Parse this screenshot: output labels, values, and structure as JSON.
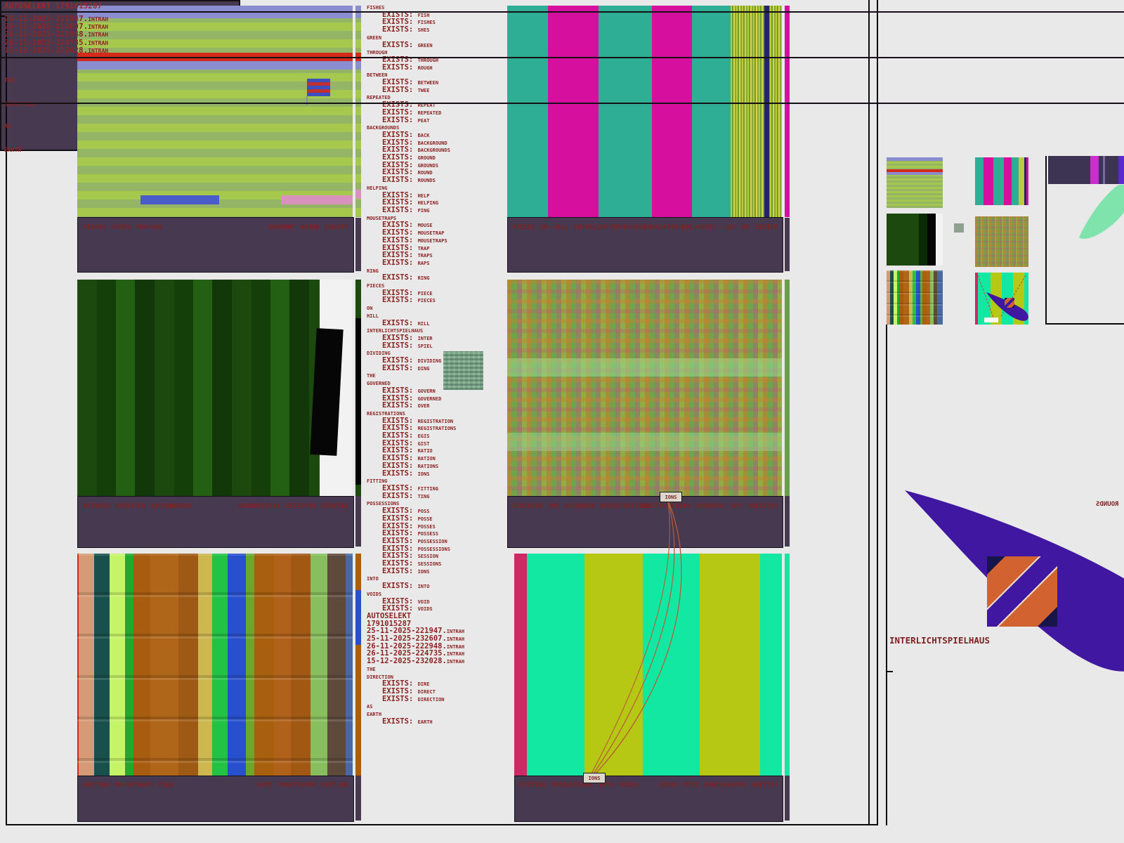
{
  "exists_label": "EXISTS:",
  "word_list": {
    "items": [
      {
        "w": "fishes",
        "e": [
          "fish",
          "fishes",
          "shes"
        ]
      },
      {
        "w": "green",
        "e": [
          "green"
        ]
      },
      {
        "w": "through",
        "e": [
          "through",
          "rough"
        ]
      },
      {
        "w": "between",
        "e": [
          "between",
          "twee"
        ]
      },
      {
        "w": "repeated",
        "e": [
          "repeat",
          "repeated",
          "peat"
        ]
      },
      {
        "w": "backgrounds",
        "e": [
          "back",
          "background",
          "backgrounds",
          "ground",
          "grounds",
          "round",
          "rounds"
        ]
      },
      {
        "w": "helping",
        "e": [
          "help",
          "helping",
          "ping"
        ]
      },
      {
        "w": "mousetraps",
        "e": [
          "mouse",
          "mousetrap",
          "mousetraps",
          "trap",
          "traps",
          "raps"
        ]
      },
      {
        "w": "ring",
        "e": [
          "ring"
        ]
      },
      {
        "w": "pieces",
        "e": [
          "piece",
          "pieces"
        ]
      },
      {
        "w": "on",
        "e": []
      },
      {
        "w": "hill",
        "e": [
          "hill"
        ]
      },
      {
        "w": "interlichtspielhaus",
        "e": [
          "inter",
          "spiel"
        ]
      },
      {
        "w": "dividing",
        "e": [
          "dividing",
          "ding"
        ]
      },
      {
        "w": "the",
        "e": []
      },
      {
        "w": "governed",
        "e": [
          "govern",
          "governed",
          "over"
        ]
      },
      {
        "w": "registrations",
        "e": [
          "registration",
          "registrations",
          "egis",
          "gist",
          "ratio",
          "ration",
          "rations",
          "ions"
        ]
      },
      {
        "w": "fitting",
        "e": [
          "fitting",
          "ting"
        ]
      },
      {
        "w": "possessions",
        "e": [
          "poss",
          "posse",
          "posses",
          "possess",
          "possession",
          "possessions",
          "session",
          "sessions",
          "ions"
        ]
      },
      {
        "w": "into",
        "e": [
          "into"
        ]
      },
      {
        "w": "voids",
        "e": [
          "void",
          "voids"
        ]
      },
      {
        "t": "AUTOSELEKT"
      },
      {
        "t": "1791015287"
      },
      {
        "t": "25-11-2025-221947.intrah"
      },
      {
        "t": "25-11-2025-232607.intrah"
      },
      {
        "t": "26-11-2025-222948.intrah"
      },
      {
        "t": "26-11-2025-224735.intrah"
      },
      {
        "t": "15-12-2025-232028.intrah"
      },
      {
        "w": "the",
        "e": []
      },
      {
        "w": "direction",
        "e": [
          "dire",
          "direct",
          "direction"
        ]
      },
      {
        "w": "as",
        "e": []
      },
      {
        "w": "earth",
        "e": [
          "earth"
        ]
      }
    ]
  },
  "captions": [
    {
      "text": "fishes green through"
    },
    {
      "text": "between repeated backgrounds"
    },
    {
      "text": "helping mousetraps ring"
    },
    {
      "text": "pieces on hill interlichtspielhaus"
    },
    {
      "text": "dividing the governed registrations",
      "highlight": "ions"
    },
    {
      "text": "fitting possessions into voids",
      "highlight": "ions"
    }
  ],
  "sidebar": {
    "header": "AUTOSELEKT 1791015287",
    "files": [
      "25-11-2025-221947.intrah",
      "25-11-2025-232607.intrah",
      "26-11-2025-222948.intrah",
      "26-11-2025-224735.intrah",
      "15-12-2025-232028.intrah"
    ],
    "section_direction": {
      "line1": "the",
      "line2": "direction"
    },
    "section_earth": {
      "line1": "as",
      "line2": "earth"
    },
    "mirrored_word": "rounds",
    "cone_caption": "INTERLICHTSPIELHAUS"
  },
  "colors": {
    "background": "#e9e9e9",
    "panel_purple": "#473a50",
    "text_red": "#7e2121",
    "list_red": "#8b2323",
    "magenta": "#d60f9e",
    "teal": "#2fae96",
    "indigo": "#4017a0",
    "spring_green": "#12e8a2",
    "yellow_green": "#b6c714",
    "mint": "#7fe3ac",
    "orange": "#d2622f",
    "navy": "#16164a"
  }
}
